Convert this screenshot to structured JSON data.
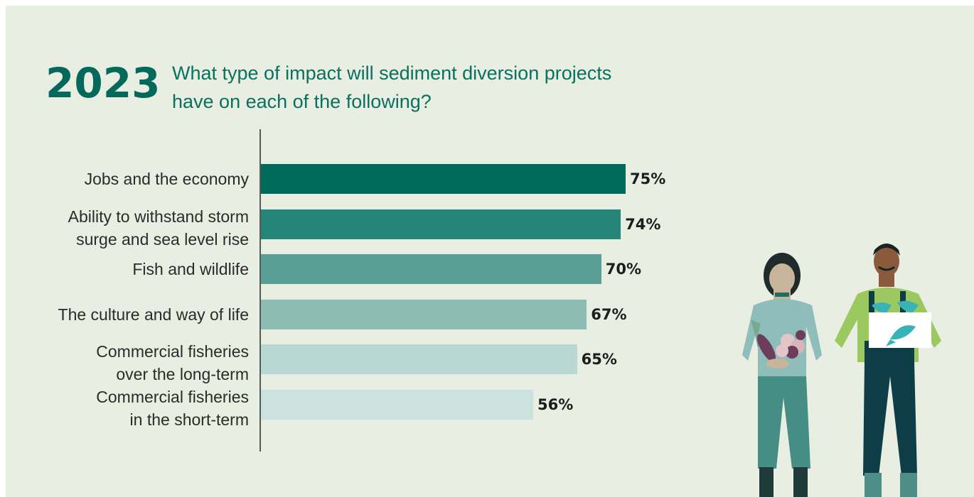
{
  "header": {
    "year": "2023",
    "question_line1": "What type of impact will sediment diversion projects",
    "question_line2": "have on each of the following?"
  },
  "colors": {
    "background": "#e8eee2",
    "accent": "#04685a",
    "bars": [
      "#006b5b",
      "#258578",
      "#5a9f96",
      "#8cbcb4",
      "#b9d8d3",
      "#cce2de"
    ]
  },
  "chart_data": {
    "type": "bar",
    "orientation": "horizontal",
    "categories": [
      "Jobs and the economy",
      "Ability to withstand storm surge and sea level rise",
      "Fish and wildlife",
      "The culture and way of life",
      "Commercial fisheries over the long-term",
      "Commercial fisheries in the short-term"
    ],
    "category_lines": [
      [
        "Jobs and the economy"
      ],
      [
        "Ability to withstand storm",
        "surge and sea level rise"
      ],
      [
        "Fish and wildlife"
      ],
      [
        "The culture and way of life"
      ],
      [
        "Commercial fisheries",
        "over the long-term"
      ],
      [
        "Commercial fisheries",
        "in the short-term"
      ]
    ],
    "values": [
      75,
      74,
      70,
      67,
      65,
      56
    ],
    "value_labels": [
      "75%",
      "74%",
      "70%",
      "67%",
      "65%",
      "56%"
    ],
    "xlim": [
      0,
      100
    ],
    "grid": false,
    "legend": "none"
  },
  "illustration": {
    "icons": [
      "woman-holding-vegetables-icon",
      "fisherman-holding-fish-crate-icon"
    ]
  }
}
